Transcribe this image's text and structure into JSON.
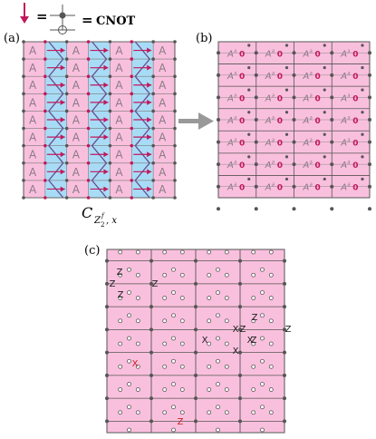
{
  "legend": {
    "equals_1": "=",
    "equals_2": "=",
    "gate_name": "CNOT"
  },
  "panel_a": {
    "label": "(a)",
    "cell_glyph": "A",
    "caption_main": "C",
    "caption_sub_1": "Z",
    "caption_sub_2": "2",
    "caption_sup": "f",
    "caption_tail": ", x"
  },
  "panel_b": {
    "label": "(b)",
    "cell_glyph": "A",
    "cell_sup": "∂",
    "cell_zero": "0"
  },
  "panel_c": {
    "label": "(c)",
    "ops": [
      {
        "text": "Z",
        "color": "#222222"
      },
      {
        "text": "Z",
        "color": "#222222"
      },
      {
        "text": "Z",
        "color": "#222222"
      },
      {
        "text": "Z",
        "color": "#222222"
      },
      {
        "text": "Z",
        "color": "#222222"
      },
      {
        "text": "X",
        "color": "#222222"
      },
      {
        "text": "Z",
        "color": "#222222"
      },
      {
        "text": "X",
        "color": "#222222"
      },
      {
        "text": "X",
        "color": "#222222"
      },
      {
        "text": "Z",
        "color": "#222222"
      },
      {
        "text": "Z",
        "color": "#222222"
      },
      {
        "text": "X",
        "color": "#222222"
      },
      {
        "text": "X",
        "color": "#cc2222"
      },
      {
        "text": "Z",
        "color": "#cc2222"
      }
    ]
  },
  "colors": {
    "pink": "#f9c0dd",
    "blue": "#a8dcf6",
    "magenta": "#c2185b",
    "grid": "#555555",
    "arrow": "#999999",
    "glyph": "#8a7a86"
  }
}
